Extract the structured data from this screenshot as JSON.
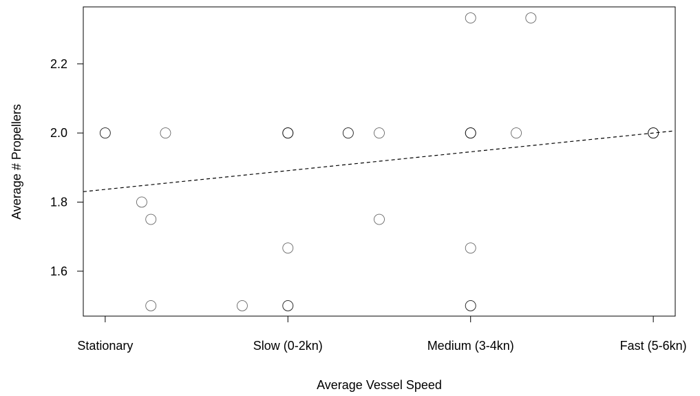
{
  "chart_data": {
    "type": "scatter",
    "title": "",
    "xlabel": "Average Vessel Speed",
    "ylabel": "Average # Propellers",
    "x_categories": [
      "Stationary",
      "Slow (0-2kn)",
      "Medium (3-4kn)",
      "Fast (5-6kn)"
    ],
    "xlim": [
      -0.12,
      3.12
    ],
    "ylim": [
      1.47,
      2.365
    ],
    "y_ticks": [
      1.6,
      1.8,
      2.0,
      2.2
    ],
    "y_tick_labels": [
      "1.6",
      "1.8",
      "2.0",
      "2.2"
    ],
    "grid": false,
    "legend": "none",
    "points": [
      {
        "x": 0.0,
        "y": 2.0
      },
      {
        "x": 0.0,
        "y": 2.0
      },
      {
        "x": 0.33,
        "y": 2.0
      },
      {
        "x": 0.2,
        "y": 1.8
      },
      {
        "x": 0.25,
        "y": 1.75
      },
      {
        "x": 0.25,
        "y": 1.5
      },
      {
        "x": 0.75,
        "y": 1.5
      },
      {
        "x": 1.0,
        "y": 2.0
      },
      {
        "x": 1.0,
        "y": 2.0
      },
      {
        "x": 1.0,
        "y": 2.0
      },
      {
        "x": 1.0,
        "y": 1.667
      },
      {
        "x": 1.0,
        "y": 1.5
      },
      {
        "x": 1.0,
        "y": 1.5
      },
      {
        "x": 1.33,
        "y": 2.0
      },
      {
        "x": 1.33,
        "y": 2.0
      },
      {
        "x": 1.5,
        "y": 2.0
      },
      {
        "x": 1.5,
        "y": 1.75
      },
      {
        "x": 2.0,
        "y": 2.333
      },
      {
        "x": 2.33,
        "y": 2.333
      },
      {
        "x": 2.0,
        "y": 2.0
      },
      {
        "x": 2.0,
        "y": 2.0
      },
      {
        "x": 2.0,
        "y": 2.0
      },
      {
        "x": 2.25,
        "y": 2.0
      },
      {
        "x": 2.0,
        "y": 1.667
      },
      {
        "x": 2.0,
        "y": 1.5
      },
      {
        "x": 2.0,
        "y": 1.5
      },
      {
        "x": 3.0,
        "y": 2.0
      },
      {
        "x": 3.0,
        "y": 2.0
      },
      {
        "x": 3.0,
        "y": 2.0
      }
    ],
    "trend_line": {
      "style": "dashed",
      "intercept": 1.8367,
      "slope": 0.0544
    }
  }
}
